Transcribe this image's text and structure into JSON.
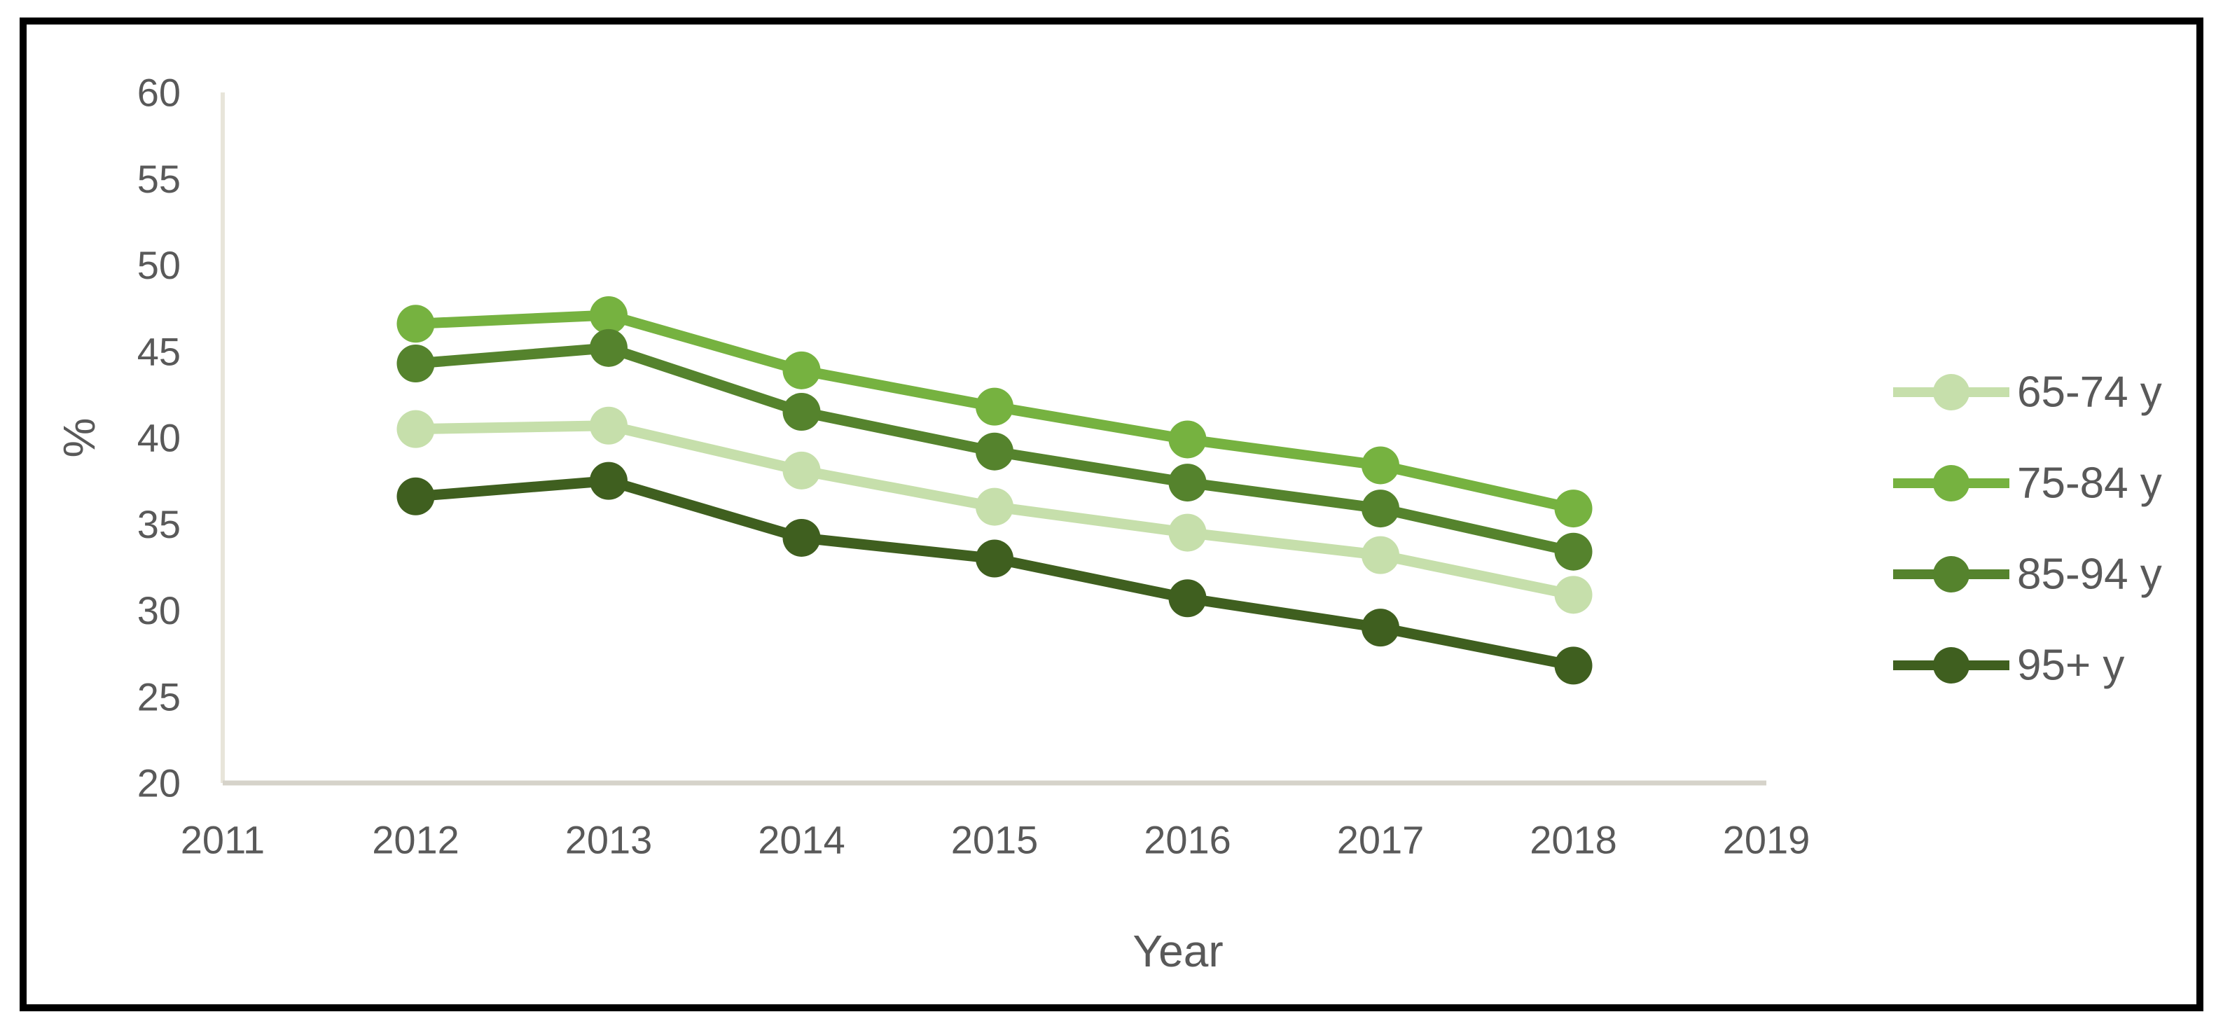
{
  "chart_data": {
    "type": "line",
    "title": "",
    "xlabel": "Year",
    "ylabel": "%",
    "x": [
      2012,
      2013,
      2014,
      2015,
      2016,
      2017,
      2018
    ],
    "xlim": [
      2011,
      2019
    ],
    "ylim": [
      20,
      60
    ],
    "x_ticks": [
      "2011",
      "2012",
      "2013",
      "2014",
      "2015",
      "2016",
      "2017",
      "2018",
      "2019"
    ],
    "y_ticks": [
      "20",
      "25",
      "30",
      "35",
      "40",
      "45",
      "50",
      "55",
      "60"
    ],
    "grid": false,
    "legend_position": "right",
    "series": [
      {
        "name": "65-74 y",
        "color": "#c6dfab",
        "values": [
          40.5,
          40.7,
          38.1,
          36.0,
          34.5,
          33.2,
          30.9
        ]
      },
      {
        "name": "75-84 y",
        "color": "#76b240",
        "values": [
          46.6,
          47.1,
          43.9,
          41.8,
          39.9,
          38.4,
          35.9
        ]
      },
      {
        "name": "85-94 y",
        "color": "#55832d",
        "values": [
          44.3,
          45.2,
          41.5,
          39.2,
          37.4,
          35.9,
          33.4
        ]
      },
      {
        "name": "95+ y",
        "color": "#3f5f1f",
        "values": [
          36.6,
          37.5,
          34.2,
          33.0,
          30.7,
          29.0,
          26.8
        ]
      }
    ]
  },
  "colors": {
    "text": "#595959",
    "frame_border": "#000000",
    "y_axis_line": "#e8e5da",
    "x_axis_line": "#d6d3ca",
    "background": "#ffffff"
  }
}
